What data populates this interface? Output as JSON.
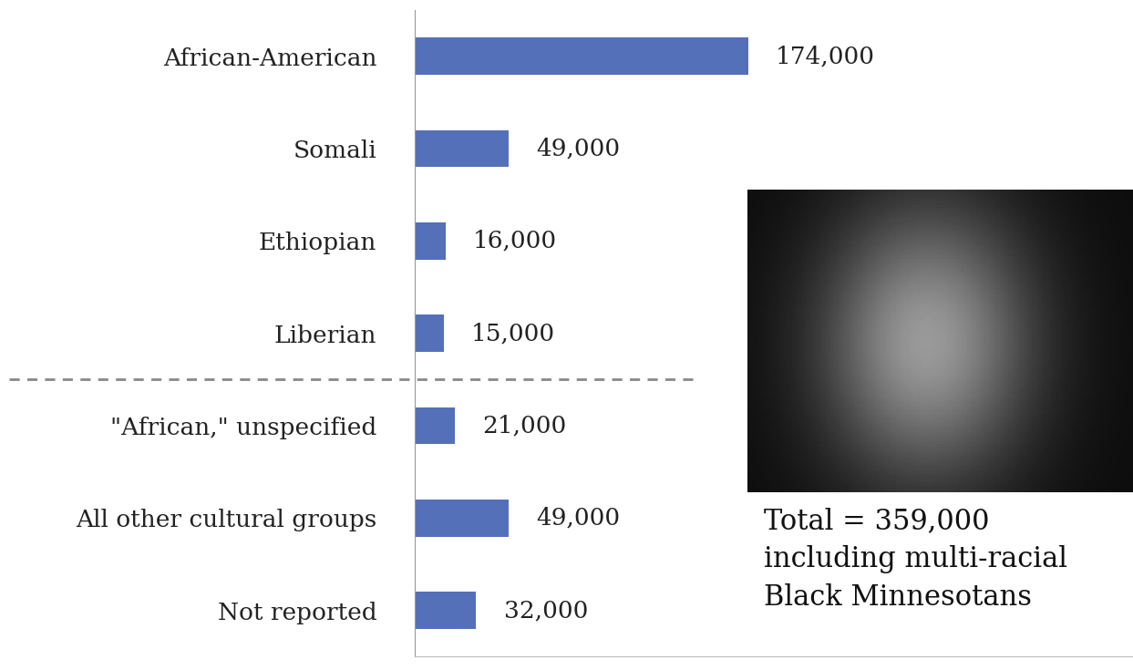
{
  "chart_data": {
    "type": "bar",
    "orientation": "horizontal",
    "categories": [
      "African-American",
      "Somali",
      "Ethiopian",
      "Liberian",
      "\"African,\" unspecified",
      "All other cultural groups",
      "Not reported"
    ],
    "values": [
      174000,
      49000,
      16000,
      15000,
      21000,
      49000,
      32000
    ],
    "value_labels": [
      "174,000",
      "49,000",
      "16,000",
      "15,000",
      "21,000",
      "49,000",
      "32,000"
    ],
    "color": "#5470b8",
    "xlim": [
      0,
      375000
    ],
    "xticks": [],
    "tick_labels": "y",
    "data_labels": true,
    "annotations": [
      "Total = 359,000\nincluding multi-racial\nBlack Minnesotans"
    ]
  }
}
